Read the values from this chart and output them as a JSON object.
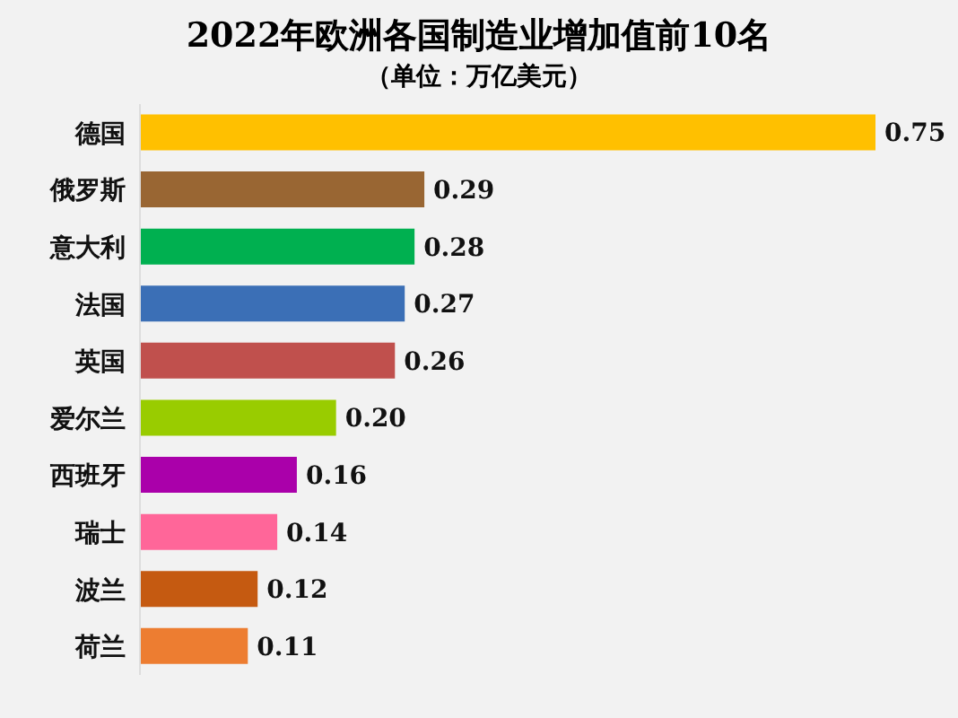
{
  "chart_data": {
    "type": "bar",
    "orientation": "horizontal",
    "title": "2022年欧洲各国制造业增加值前10名",
    "subtitle": "（单位：万亿美元）",
    "categories": [
      "德国",
      "俄罗斯",
      "意大利",
      "法国",
      "英国",
      "爱尔兰",
      "西班牙",
      "瑞士",
      "波兰",
      "荷兰"
    ],
    "values": [
      0.75,
      0.29,
      0.28,
      0.27,
      0.26,
      0.2,
      0.16,
      0.14,
      0.12,
      0.11
    ],
    "value_labels": [
      "0.75",
      "0.29",
      "0.28",
      "0.27",
      "0.26",
      "0.20",
      "0.16",
      "0.14",
      "0.12",
      "0.11"
    ],
    "colors": [
      "#ffc000",
      "#996633",
      "#00b050",
      "#3b6fb6",
      "#c0504d",
      "#99cc00",
      "#aa00aa",
      "#ff6699",
      "#c55a11",
      "#ed7d31"
    ]
  }
}
